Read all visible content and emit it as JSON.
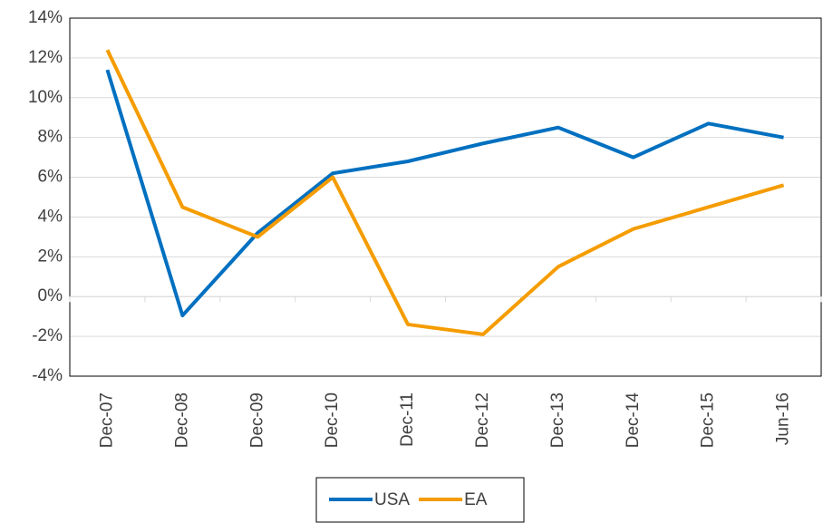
{
  "chart_data": {
    "type": "line",
    "categories": [
      "Dec-07",
      "Dec-08",
      "Dec-09",
      "Dec-10",
      "Dec-11",
      "Dec-12",
      "Dec-13",
      "Dec-14",
      "Dec-15",
      "Jun-16"
    ],
    "series": [
      {
        "name": "USA",
        "color": "#0070c0",
        "values": [
          11.4,
          -0.95,
          3.2,
          6.2,
          6.8,
          7.7,
          8.5,
          7.0,
          8.7,
          8.0
        ]
      },
      {
        "name": "EA",
        "color": "#f59c00",
        "values": [
          12.4,
          4.5,
          3.0,
          6.0,
          -1.4,
          -1.9,
          1.5,
          3.4,
          4.5,
          5.6
        ]
      }
    ],
    "ylim": [
      -4,
      14
    ],
    "yticks": [
      {
        "value": -4,
        "label": "-4%"
      },
      {
        "value": -2,
        "label": "-2%"
      },
      {
        "value": 0,
        "label": "0%"
      },
      {
        "value": 2,
        "label": "2%"
      },
      {
        "value": 4,
        "label": "4%"
      },
      {
        "value": 6,
        "label": "6%"
      },
      {
        "value": 8,
        "label": "8%"
      },
      {
        "value": 10,
        "label": "10%"
      },
      {
        "value": 12,
        "label": "12%"
      },
      {
        "value": 14,
        "label": "14%"
      }
    ],
    "grid": true,
    "legend": "bottom"
  }
}
